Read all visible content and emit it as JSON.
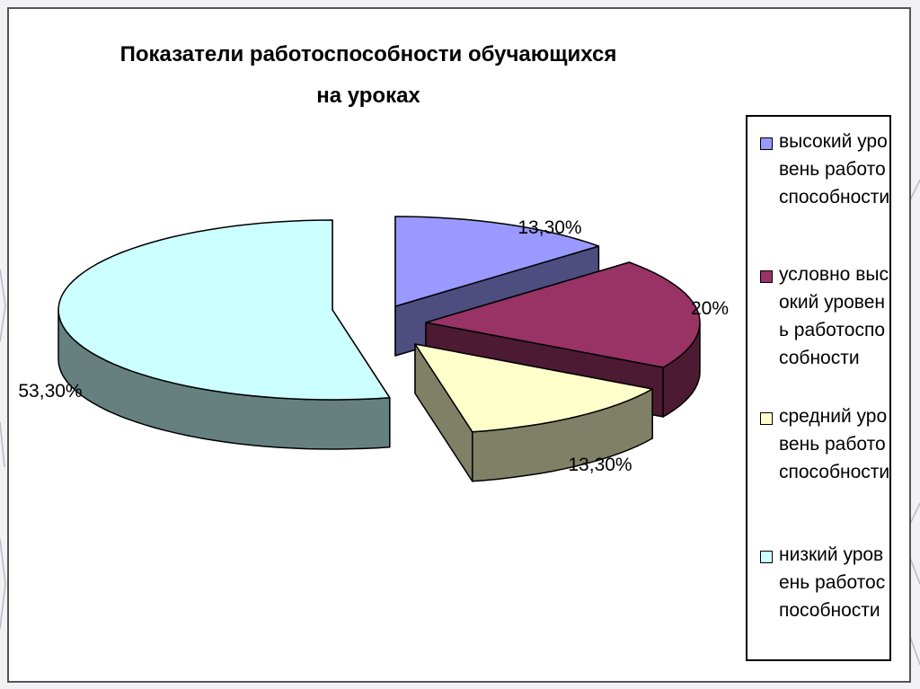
{
  "chart_data": {
    "type": "pie",
    "title": "Показатели работоспособности обучающихся на уроках",
    "slices": [
      {
        "name": "высокий уровень работоспособности",
        "value": 13.3,
        "label": "13,30%",
        "color": "#9999ff"
      },
      {
        "name": "условно высокий уровень работоспособности",
        "value": 20.0,
        "label": "20%",
        "color": "#993366"
      },
      {
        "name": "средний уровень работоспособности",
        "value": 13.3,
        "label": "13,30%",
        "color": "#ffffcc"
      },
      {
        "name": "низкий уровень работоспособности",
        "value": 53.3,
        "label": "53,30%",
        "color": "#ccffff"
      }
    ],
    "legend_position": "right",
    "three_d": true,
    "exploded": true
  }
}
